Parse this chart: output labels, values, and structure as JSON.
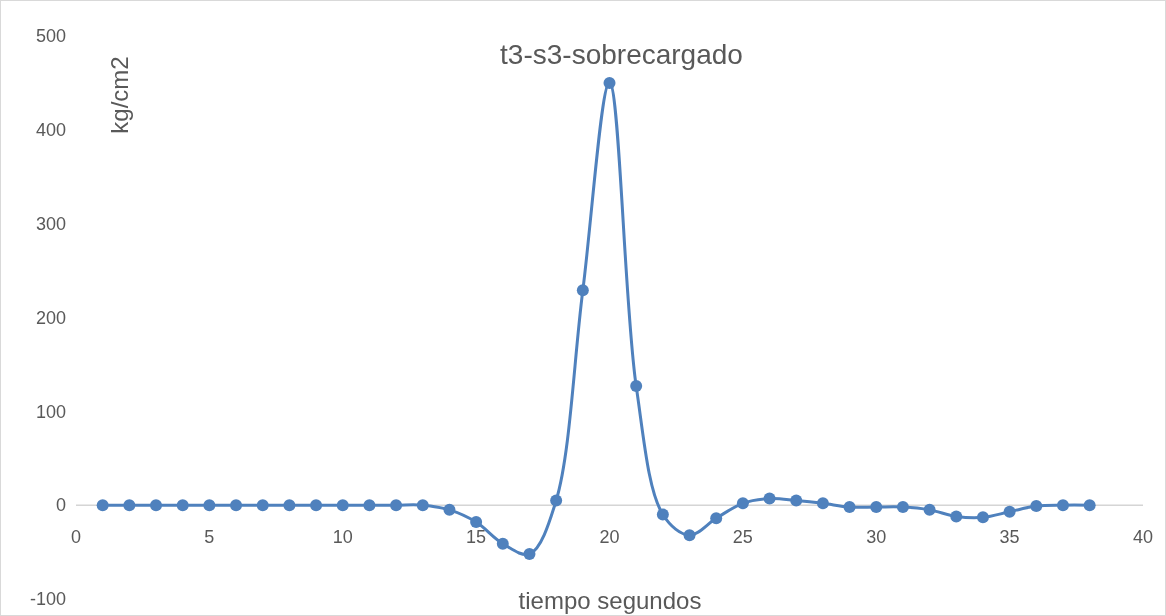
{
  "chart_data": {
    "type": "line",
    "title": "t3-s3-sobrecargado",
    "xlabel": "tiempo segundos",
    "ylabel": "kg/cm2",
    "x": [
      1,
      2,
      3,
      4,
      5,
      6,
      7,
      8,
      9,
      10,
      11,
      12,
      13,
      14,
      15,
      16,
      17,
      18,
      19,
      20,
      21,
      22,
      23,
      24,
      25,
      26,
      27,
      28,
      29,
      30,
      31,
      32,
      33,
      34,
      35,
      36,
      37,
      38
    ],
    "series": [
      {
        "color": "#4f81bd",
        "values": [
          0,
          0,
          0,
          0,
          0,
          0,
          0,
          0,
          0,
          0,
          0,
          0,
          0,
          -5,
          -18,
          -41,
          -52,
          5,
          229,
          450,
          127,
          -10,
          -32,
          -14,
          2,
          7,
          5,
          2,
          -2,
          -2,
          -2,
          -5,
          -12,
          -13,
          -7,
          -1,
          0,
          0
        ]
      }
    ],
    "xlim": [
      0,
      40
    ],
    "xticks": [
      0,
      5,
      10,
      15,
      20,
      25,
      30,
      35,
      40
    ],
    "ylim": [
      -100,
      500
    ],
    "yticks": [
      -100,
      0,
      100,
      200,
      300,
      400,
      500
    ],
    "grid": false,
    "marker": "circle",
    "line_style": "solid"
  }
}
